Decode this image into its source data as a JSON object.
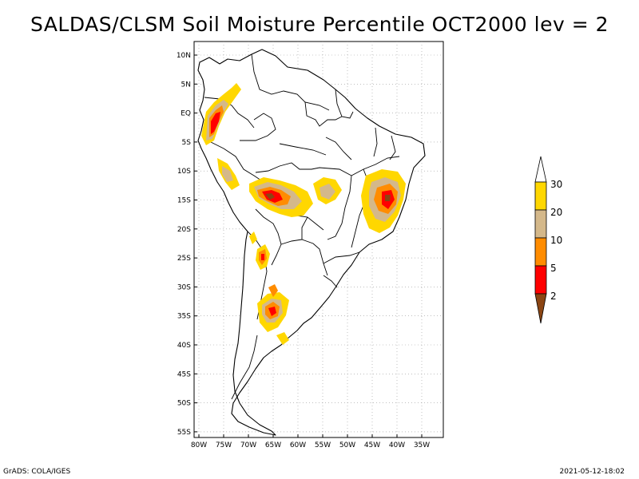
{
  "title": "SALDAS/CLSM Soil Moisture Percentile OCT2000 lev = 2",
  "map": {
    "lat_ticks": [
      "10N",
      "5N",
      "EQ",
      "5S",
      "10S",
      "15S",
      "20S",
      "25S",
      "30S",
      "35S",
      "40S",
      "45S",
      "50S",
      "55S"
    ],
    "lon_ticks": [
      "80W",
      "75W",
      "70W",
      "65W",
      "60W",
      "55W",
      "50W",
      "45W",
      "40W",
      "35W"
    ]
  },
  "legend": {
    "labels": [
      "30",
      "20",
      "10",
      "5",
      "2"
    ],
    "colors": {
      "above_30": "#ffffff",
      "20_30": "#ffd700",
      "10_20": "#d4b88a",
      "5_10": "#ff8c00",
      "2_5": "#ff0000",
      "below_2": "#8b4513"
    }
  },
  "footer": {
    "left": "GrADS: COLA/IGES",
    "right": "2021-05-12-18:02"
  }
}
